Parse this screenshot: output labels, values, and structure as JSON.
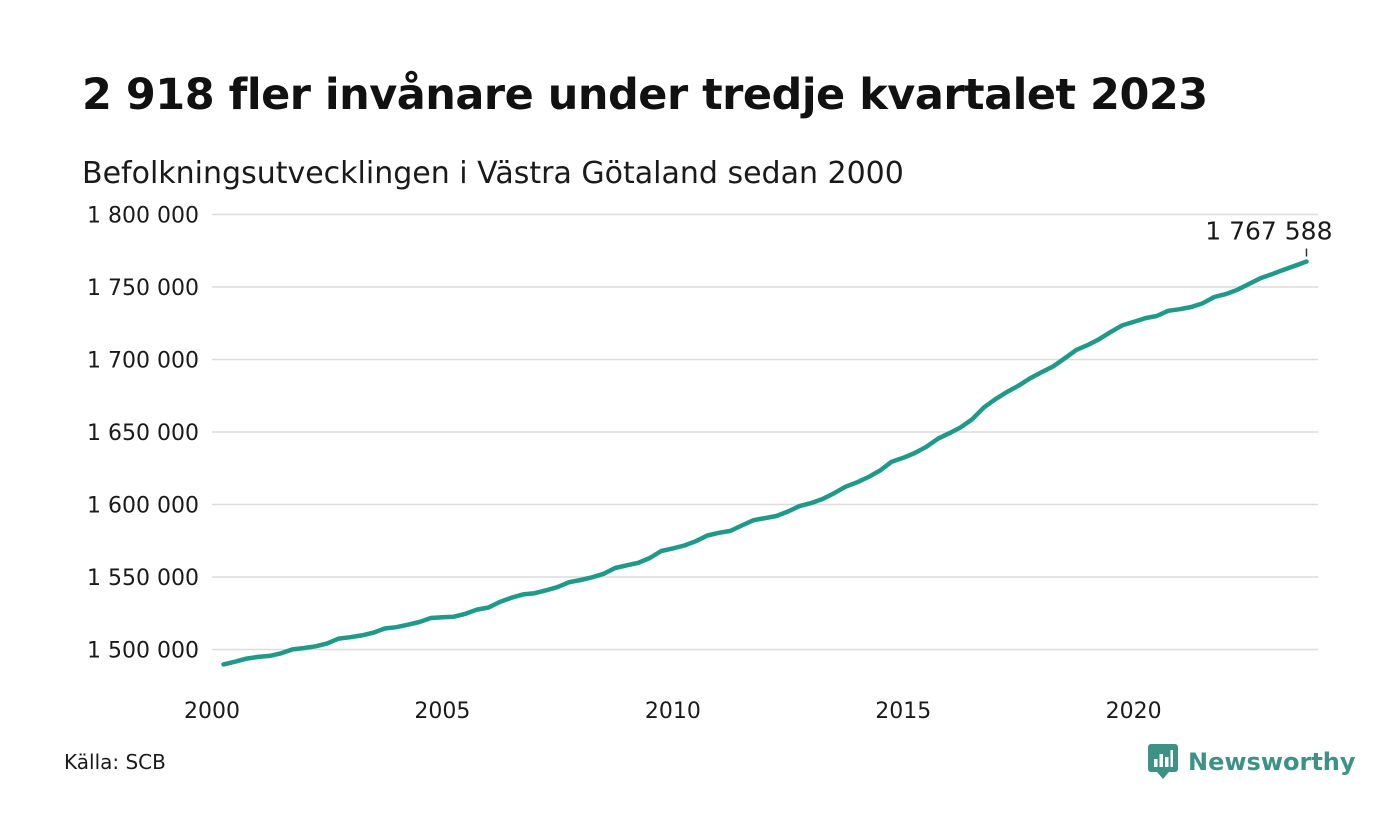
{
  "title": "2 918 fler invånare under tredje kvartalet 2023",
  "subtitle": "Befolkningsutvecklingen i Västra Götaland sedan 2000",
  "source": "Källa: SCB",
  "brand": {
    "name": "Newsworthy",
    "icon": "newsworthy-logo-icon",
    "color": "#3d9285"
  },
  "chart_data": {
    "type": "line",
    "title": "2 918 fler invånare under tredje kvartalet 2023",
    "subtitle": "Befolkningsutvecklingen i Västra Götaland sedan 2000",
    "xlabel": "",
    "ylabel": "",
    "xlim": [
      2000,
      2024
    ],
    "ylim": [
      1490000,
      1810000
    ],
    "grid": true,
    "line_color": "#1f9a88",
    "grid_color": "#dcdcdc",
    "y_ticks": [
      1500000,
      1550000,
      1600000,
      1650000,
      1700000,
      1750000,
      1800000
    ],
    "y_tick_labels": [
      "1 500 000",
      "1 550 000",
      "1 600 000",
      "1 650 000",
      "1 700 000",
      "1 750 000",
      "1 800 000"
    ],
    "x_ticks": [
      2000,
      2005,
      2010,
      2015,
      2020
    ],
    "x_tick_labels": [
      "2000",
      "2005",
      "2010",
      "2015",
      "2020"
    ],
    "annotation": {
      "x": 2023.75,
      "y": 1767588,
      "label": "1 767 588"
    },
    "series": [
      {
        "x": [
          2000.25,
          2000.5,
          2000.75,
          2001.0,
          2001.25,
          2001.5,
          2001.75,
          2002.0,
          2002.25,
          2002.5,
          2002.75,
          2003.0,
          2003.25,
          2003.5,
          2003.75,
          2004.0,
          2004.25,
          2004.5,
          2004.75,
          2005.0,
          2005.25,
          2005.5,
          2005.75,
          2006.0,
          2006.25,
          2006.5,
          2006.75,
          2007.0,
          2007.25,
          2007.5,
          2007.75,
          2008.0,
          2008.25,
          2008.5,
          2008.75,
          2009.0,
          2009.25,
          2009.5,
          2009.75,
          2010.0,
          2010.25,
          2010.5,
          2010.75,
          2011.0,
          2011.25,
          2011.5,
          2011.75,
          2012.0,
          2012.25,
          2012.5,
          2012.75,
          2013.0,
          2013.25,
          2013.5,
          2013.75,
          2014.0,
          2014.25,
          2014.5,
          2014.75,
          2015.0,
          2015.25,
          2015.5,
          2015.75,
          2016.0,
          2016.25,
          2016.5,
          2016.75,
          2017.0,
          2017.25,
          2017.5,
          2017.75,
          2018.0,
          2018.25,
          2018.5,
          2018.75,
          2019.0,
          2019.25,
          2019.5,
          2019.75,
          2020.0,
          2020.25,
          2020.5,
          2020.75,
          2021.0,
          2021.25,
          2021.5,
          2021.75,
          2022.0,
          2022.25,
          2022.5,
          2022.75,
          2023.0,
          2023.25,
          2023.5,
          2023.75
        ],
        "values": [
          1489700,
          1491600,
          1493700,
          1494900,
          1495600,
          1497400,
          1500100,
          1501000,
          1502200,
          1504200,
          1507500,
          1508500,
          1509700,
          1511600,
          1514500,
          1515400,
          1517100,
          1519000,
          1521700,
          1522200,
          1522600,
          1524600,
          1527500,
          1529000,
          1532800,
          1535700,
          1538000,
          1538800,
          1540800,
          1543000,
          1546400,
          1547900,
          1549800,
          1552200,
          1556200,
          1558100,
          1559800,
          1563100,
          1567900,
          1569700,
          1571700,
          1574700,
          1578600,
          1580500,
          1581800,
          1585600,
          1589200,
          1590600,
          1592100,
          1595200,
          1598900,
          1601000,
          1603800,
          1607800,
          1612300,
          1615300,
          1619000,
          1623500,
          1629500,
          1632200,
          1635500,
          1639800,
          1645300,
          1649200,
          1653300,
          1658900,
          1667000,
          1672600,
          1677600,
          1681900,
          1687000,
          1691200,
          1695200,
          1700700,
          1706500,
          1709900,
          1714000,
          1718900,
          1723500,
          1725900,
          1728500,
          1730000,
          1733600,
          1734700,
          1736200,
          1738800,
          1743100,
          1745100,
          1748100,
          1752100,
          1756100,
          1758800,
          1761800,
          1764700,
          1767588
        ]
      }
    ]
  }
}
